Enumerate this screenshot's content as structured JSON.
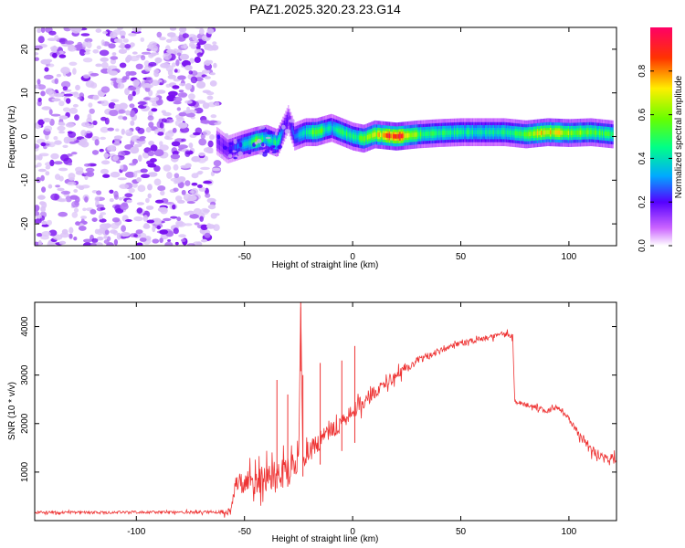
{
  "title": "PAZ1.2025.320.23.23.G14",
  "chart_data": [
    {
      "type": "heatmap",
      "xlabel": "Height of straight line (km)",
      "ylabel": "Frequency (Hz)",
      "xlim": [
        -147,
        122
      ],
      "ylim": [
        -25,
        25
      ],
      "x_ticks": [
        -100,
        -50,
        0,
        50,
        100
      ],
      "y_ticks": [
        -20,
        -10,
        0,
        10,
        20
      ],
      "noise_region_x": [
        -147,
        -62
      ],
      "ridge": [
        {
          "x": -63,
          "y": -1.0,
          "a": 0.15
        },
        {
          "x": -58,
          "y": -3.0,
          "a": 0.2
        },
        {
          "x": -52,
          "y": -2.0,
          "a": 0.3
        },
        {
          "x": -45,
          "y": -1.0,
          "a": 0.55
        },
        {
          "x": -40,
          "y": -0.5,
          "a": 0.4
        },
        {
          "x": -35,
          "y": -1.5,
          "a": 0.45
        },
        {
          "x": -30,
          "y": 4.0,
          "a": 0.15
        },
        {
          "x": -27,
          "y": 0.0,
          "a": 0.3
        },
        {
          "x": -22,
          "y": 1.0,
          "a": 0.4
        },
        {
          "x": -17,
          "y": 1.0,
          "a": 0.6
        },
        {
          "x": -10,
          "y": 2.0,
          "a": 0.35
        },
        {
          "x": -5,
          "y": 1.0,
          "a": 0.5
        },
        {
          "x": 0,
          "y": 0.0,
          "a": 0.45
        },
        {
          "x": 5,
          "y": -0.5,
          "a": 0.55
        },
        {
          "x": 10,
          "y": 0.5,
          "a": 0.65
        },
        {
          "x": 20,
          "y": 0.0,
          "a": 0.95
        },
        {
          "x": 30,
          "y": 0.5,
          "a": 0.55
        },
        {
          "x": 40,
          "y": 0.8,
          "a": 0.45
        },
        {
          "x": 50,
          "y": 1.0,
          "a": 0.45
        },
        {
          "x": 60,
          "y": 1.0,
          "a": 0.42
        },
        {
          "x": 70,
          "y": 1.0,
          "a": 0.45
        },
        {
          "x": 80,
          "y": 0.5,
          "a": 0.55
        },
        {
          "x": 90,
          "y": 1.0,
          "a": 0.75
        },
        {
          "x": 100,
          "y": 0.8,
          "a": 0.6
        },
        {
          "x": 110,
          "y": 1.0,
          "a": 0.55
        },
        {
          "x": 120,
          "y": 0.5,
          "a": 0.5
        }
      ],
      "colorbar": {
        "label": "Normalized spectral amplitude",
        "range": [
          0.0,
          1.0
        ],
        "ticks": [
          0.0,
          0.2,
          0.4,
          0.6,
          0.8
        ],
        "tick_labels": [
          "0.0",
          "0.2",
          "0.4",
          "0.6",
          "0.8"
        ]
      }
    },
    {
      "type": "line",
      "xlabel": "Height of straight line (km)",
      "ylabel": "SNR (10 * v/v)",
      "xlim": [
        -147,
        122
      ],
      "ylim": [
        0,
        4500
      ],
      "x_ticks": [
        -100,
        -50,
        0,
        50,
        100
      ],
      "y_ticks": [
        1000,
        2000,
        3000,
        4000
      ],
      "color": "#ee3333",
      "series": [
        {
          "name": "SNR",
          "x": [
            -147,
            -120,
            -100,
            -80,
            -62,
            -56,
            -55,
            -50,
            -45,
            -40,
            -35,
            -30,
            -27,
            -25,
            -24,
            -23,
            -20,
            -15,
            -10,
            -5,
            0,
            5,
            10,
            20,
            30,
            40,
            50,
            60,
            70,
            74,
            75,
            80,
            90,
            95,
            100,
            105,
            110,
            115,
            122
          ],
          "values": [
            170,
            165,
            175,
            170,
            175,
            200,
            700,
            750,
            800,
            880,
            950,
            1000,
            1100,
            1200,
            4400,
            1300,
            1450,
            1650,
            1850,
            2050,
            2250,
            2450,
            2650,
            3000,
            3300,
            3500,
            3650,
            3750,
            3850,
            3800,
            2450,
            2400,
            2250,
            2350,
            2100,
            1750,
            1450,
            1350,
            1250
          ],
          "noise_amp": [
            55,
            55,
            55,
            55,
            60,
            200,
            500,
            520,
            550,
            580,
            600,
            600,
            600,
            450,
            0,
            450,
            420,
            400,
            380,
            350,
            320,
            300,
            280,
            220,
            180,
            140,
            120,
            110,
            110,
            110,
            90,
            90,
            100,
            100,
            110,
            150,
            180,
            200,
            200
          ]
        }
      ],
      "spikes": [
        {
          "x": -24,
          "value": 4500
        },
        {
          "x": -35,
          "value": 2900
        },
        {
          "x": -30,
          "value": 2600
        },
        {
          "x": -23,
          "value": 3000
        },
        {
          "x": -15,
          "value": 3250
        },
        {
          "x": -5,
          "value": 3300
        },
        {
          "x": 1,
          "value": 3600
        }
      ]
    }
  ]
}
